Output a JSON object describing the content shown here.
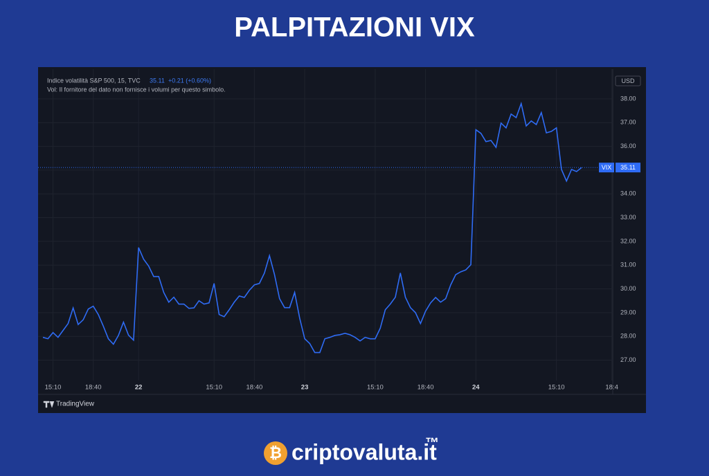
{
  "chart_data": {
    "type": "line",
    "title": "PALPITAZIONI VIX",
    "symbol_line": "Indice volatilità S&P 500, 15, TVC",
    "last_price": 35.11,
    "change": "+0.21 (+0.60%)",
    "volume_note": "Vol: Il fornitore del dato non fornisce i volumi per questo simbolo.",
    "currency": "USD",
    "price_tag": "VIX",
    "watermark": "TradingView",
    "grid": true,
    "ylim": [
      26.2,
      39.25
    ],
    "yticks": [
      {
        "value": 27,
        "label": "27.00"
      },
      {
        "value": 28,
        "label": "28.00"
      },
      {
        "value": 29,
        "label": "29.00"
      },
      {
        "value": 30,
        "label": "30.00"
      },
      {
        "value": 31,
        "label": "31.00"
      },
      {
        "value": 32,
        "label": "32.00"
      },
      {
        "value": 33,
        "label": "33.00"
      },
      {
        "value": 34,
        "label": "34.00"
      },
      {
        "value": 35,
        "label": "35.00"
      },
      {
        "value": 36,
        "label": "36.00"
      },
      {
        "value": 37,
        "label": "37.00"
      },
      {
        "value": 38,
        "label": "38.00"
      }
    ],
    "categories": [
      null,
      null,
      "15:10",
      null,
      null,
      null,
      null,
      null,
      null,
      null,
      "18:40",
      null,
      null,
      null,
      null,
      null,
      null,
      null,
      null,
      "22",
      null,
      null,
      null,
      null,
      null,
      null,
      null,
      null,
      null,
      null,
      null,
      null,
      null,
      null,
      "15:10",
      null,
      null,
      null,
      null,
      null,
      null,
      null,
      "18:40",
      null,
      null,
      null,
      null,
      null,
      null,
      null,
      null,
      null,
      "23",
      null,
      null,
      null,
      null,
      null,
      null,
      null,
      null,
      null,
      null,
      null,
      null,
      null,
      "15:10",
      null,
      null,
      null,
      null,
      null,
      null,
      null,
      null,
      null,
      "18:40",
      null,
      null,
      null,
      null,
      null,
      null,
      null,
      null,
      null,
      "24",
      null,
      null,
      null,
      null,
      null,
      null,
      null,
      null,
      null,
      null,
      null,
      null,
      null,
      null,
      null,
      "15:10",
      null,
      null,
      null,
      null,
      null,
      null,
      null,
      null,
      null,
      null,
      "18:4"
    ],
    "series": [
      {
        "name": "VIX",
        "color": "#2f6cf5",
        "values": [
          27.96,
          27.9,
          28.16,
          27.96,
          28.25,
          28.54,
          29.2,
          28.5,
          28.7,
          29.15,
          29.27,
          28.92,
          28.43,
          27.9,
          27.67,
          28.04,
          28.6,
          28.05,
          27.84,
          31.74,
          31.25,
          30.96,
          30.52,
          30.52,
          29.85,
          29.44,
          29.65,
          29.36,
          29.36,
          29.18,
          29.2,
          29.5,
          29.36,
          29.41,
          30.23,
          28.92,
          28.83,
          29.12,
          29.44,
          29.7,
          29.64,
          29.94,
          30.17,
          30.23,
          30.67,
          31.4,
          30.6,
          29.59,
          29.21,
          29.21,
          29.85,
          28.77,
          27.9,
          27.7,
          27.32,
          27.32,
          27.9,
          27.96,
          28.04,
          28.07,
          28.13,
          28.07,
          27.96,
          27.81,
          27.96,
          27.9,
          27.9,
          28.34,
          29.12,
          29.36,
          29.65,
          30.67,
          29.65,
          29.21,
          29.0,
          28.54,
          29.06,
          29.41,
          29.64,
          29.44,
          29.59,
          30.17,
          30.6,
          30.72,
          30.8,
          31.02,
          36.7,
          36.55,
          36.2,
          36.25,
          35.96,
          36.98,
          36.78,
          37.36,
          37.21,
          37.8,
          36.86,
          37.07,
          36.92,
          37.42,
          36.57,
          36.63,
          36.78,
          35.03,
          34.54,
          35.03,
          34.94,
          35.11,
          null,
          null,
          null,
          null,
          null,
          null
        ]
      }
    ]
  },
  "footer": {
    "brand": "criptovaluta.it",
    "trademark": "™"
  }
}
